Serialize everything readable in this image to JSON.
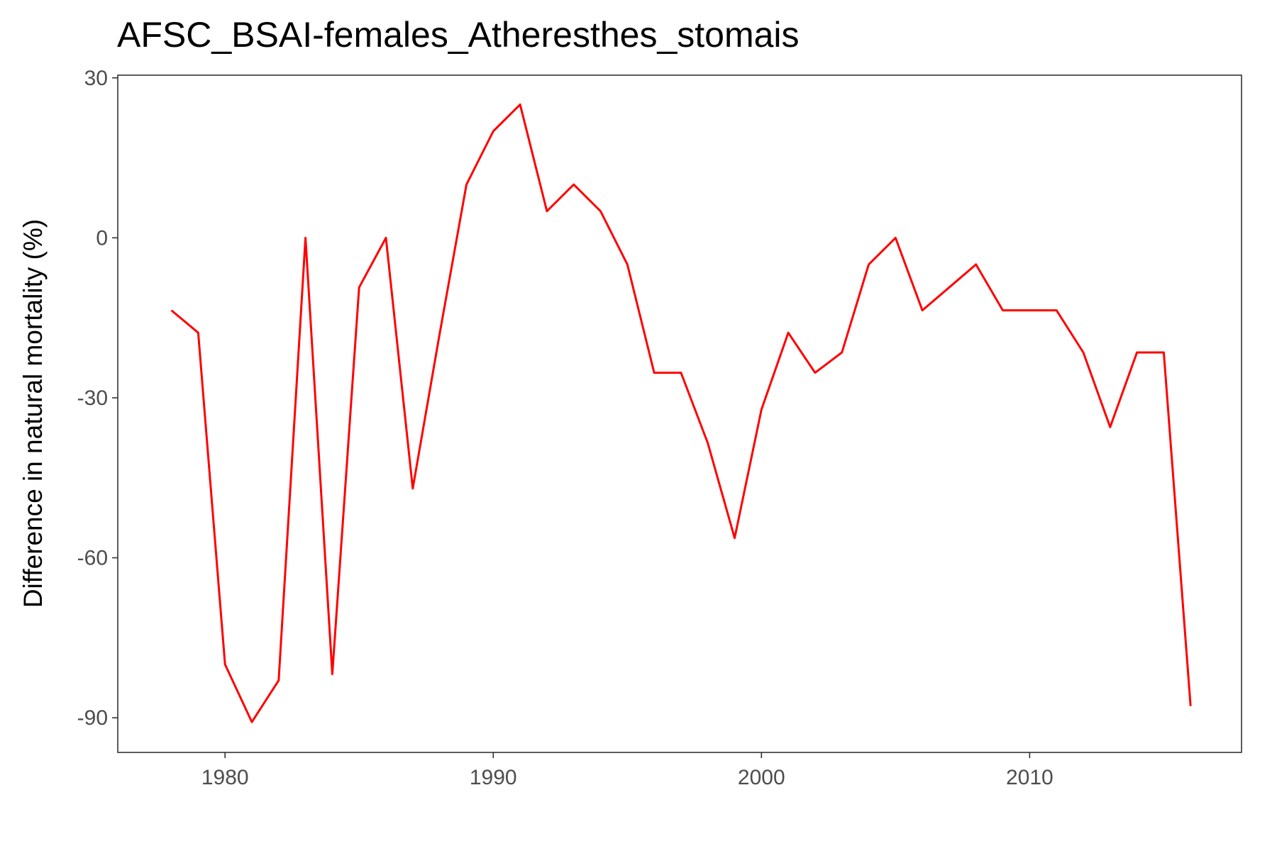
{
  "chart_data": {
    "type": "line",
    "title": "AFSC_BSAI-females_Atheresthes_stomais",
    "xlabel": "",
    "ylabel": "Difference in natural mortality (%)",
    "xlim": [
      1976.0,
      2017.9
    ],
    "ylim": [
      -96.5,
      30.5
    ],
    "x_ticks": [
      1980,
      1990,
      2000,
      2010
    ],
    "y_ticks": [
      30,
      0,
      -30,
      -60,
      -90
    ],
    "grid": false,
    "legend": "none",
    "line_color": "#ff0000",
    "series": [
      {
        "x": [
          1978,
          1979,
          1980,
          1981,
          1982,
          1983,
          1984,
          1985,
          1986,
          1987,
          1988,
          1989,
          1990,
          1991,
          1992,
          1993,
          1994,
          1995,
          1996,
          1997,
          1998,
          1999,
          2000,
          2001,
          2002,
          2003,
          2004,
          2005,
          2006,
          2007,
          2008,
          2009,
          2010,
          2011,
          2012,
          2013,
          2014,
          2015,
          2016
        ],
        "values": [
          -13.6,
          -17.8,
          -80.0,
          -90.8,
          -83.0,
          0.0,
          -81.8,
          -9.3,
          0.0,
          -47.0,
          -18.0,
          10.0,
          20.0,
          25.0,
          5.0,
          10.0,
          5.0,
          -5.0,
          -25.3,
          -25.3,
          -38.5,
          -56.3,
          -32.2,
          -17.8,
          -25.3,
          -21.5,
          -5.0,
          0.0,
          -13.6,
          -9.3,
          -5.0,
          -13.6,
          -13.6,
          -13.6,
          -21.5,
          -35.5,
          -21.5,
          -21.5,
          -87.8
        ]
      }
    ]
  }
}
